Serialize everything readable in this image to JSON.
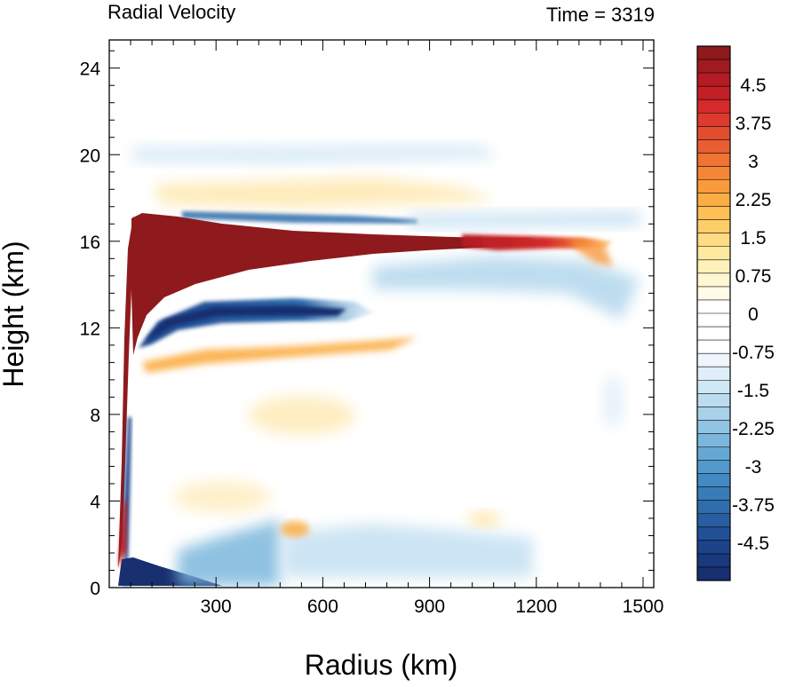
{
  "header": {
    "left_title": "Radial Velocity",
    "right_title": "Time = 3319"
  },
  "chart_data": {
    "type": "heatmap",
    "title": "Radial Velocity",
    "time_label": "Time = 3319",
    "xlabel": "Radius (km)",
    "ylabel": "Height (km)",
    "xlim": [
      0,
      1530
    ],
    "ylim": [
      0,
      25.3
    ],
    "x_ticks": [
      300,
      600,
      900,
      1200,
      1500
    ],
    "y_ticks": [
      0,
      4,
      8,
      12,
      16,
      20,
      24
    ],
    "colorbar": {
      "labels": [
        "4.5",
        "3.75",
        "3",
        "2.25",
        "1.5",
        "0.75",
        "0",
        "-0.75",
        "-1.5",
        "-2.25",
        "-3",
        "-3.75",
        "-4.5"
      ],
      "label_values": [
        4.5,
        3.75,
        3,
        2.25,
        1.5,
        0.75,
        0,
        -0.75,
        -1.5,
        -2.25,
        -3,
        -3.75,
        -4.5
      ],
      "levels": [
        5.25,
        5.0,
        4.75,
        4.5,
        4.25,
        4.0,
        3.75,
        3.5,
        3.25,
        3.0,
        2.75,
        2.5,
        2.25,
        2.0,
        1.75,
        1.5,
        1.25,
        1.0,
        0.75,
        0.5,
        0.25,
        0,
        -0.25,
        -0.5,
        -0.75,
        -1.0,
        -1.25,
        -1.5,
        -1.75,
        -2.0,
        -2.25,
        -2.5,
        -2.75,
        -3.0,
        -3.25,
        -3.5,
        -3.75,
        -4.0,
        -4.25,
        -4.5,
        -4.75,
        -5.0,
        -5.25
      ],
      "colors": [
        "#8e1a1d",
        "#a01a1f",
        "#b21c22",
        "#c31f26",
        "#d42a2b",
        "#dd3a2d",
        "#e24c2f",
        "#e85e31",
        "#ef7333",
        "#f58636",
        "#f99a3c",
        "#fbad45",
        "#fdbf56",
        "#fdcd6a",
        "#fedb84",
        "#feea9f",
        "#fef2ba",
        "#fff6d2",
        "#fffbe8",
        "#ffffff",
        "#ffffff",
        "#ffffff",
        "#ffffff",
        "#eef6fb",
        "#dfeef8",
        "#d0e7f5",
        "#bcdcf0",
        "#a8d1ea",
        "#92c5e3",
        "#7bb7dc",
        "#65a8d4",
        "#5299cb",
        "#428ac1",
        "#387cb7",
        "#2f6dac",
        "#285ea1",
        "#225096",
        "#1d438a",
        "#1a387d",
        "#182f70"
      ]
    },
    "features": [
      {
        "name": "upper-level outflow",
        "sign": "positive",
        "x_range": [
          40,
          1330
        ],
        "height_km": 15.8,
        "peak": 5.25
      },
      {
        "name": "inflow layer below outflow",
        "sign": "negative",
        "x_range": [
          60,
          800
        ],
        "height_km": 12.5,
        "peak": -5.25
      },
      {
        "name": "boundary-layer inflow",
        "sign": "negative",
        "x_range": [
          30,
          480
        ],
        "height_km": 0.6,
        "peak": -5.25
      },
      {
        "name": "eyewall outflow column",
        "sign": "positive",
        "x_range": [
          35,
          120
        ],
        "height_km": [
          1,
          17
        ],
        "peak": 5.25
      }
    ]
  }
}
